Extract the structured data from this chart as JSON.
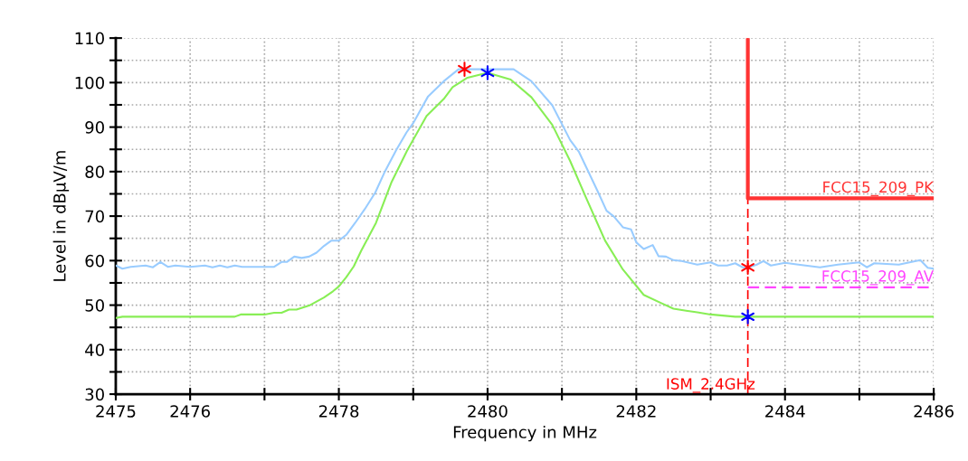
{
  "chart_data": {
    "type": "line",
    "xlabel": "Frequency in MHz",
    "ylabel": "Level in dBµV/m",
    "xlim": [
      2475,
      2486
    ],
    "xticks": [
      2475,
      2476,
      {
        "value": 2477,
        "label": null
      },
      2478,
      {
        "value": 2479,
        "label": null
      },
      2480,
      {
        "value": 2481,
        "label": null
      },
      2482,
      {
        "value": 2483,
        "label": null
      },
      2484,
      {
        "value": 2485,
        "label": null
      },
      2486
    ],
    "ylim": [
      30,
      110
    ],
    "yticks": [
      30,
      {
        "value": 35,
        "label": null
      },
      40,
      {
        "value": 45,
        "label": null
      },
      50,
      {
        "value": 55,
        "label": null
      },
      60,
      {
        "value": 65,
        "label": null
      },
      70,
      {
        "value": 75,
        "label": null
      },
      80,
      {
        "value": 85,
        "label": null
      },
      90,
      {
        "value": 95,
        "label": null
      },
      100,
      {
        "value": 105,
        "label": null
      },
      110
    ],
    "grid": true,
    "series": [
      {
        "color": "#99ccff",
        "x": [
          2475.0,
          2475.09,
          2475.2,
          2475.4,
          2475.5,
          2475.6,
          2475.7,
          2475.8,
          2476.0,
          2476.2,
          2476.3,
          2476.4,
          2476.5,
          2476.6,
          2476.7,
          2477.13,
          2477.23,
          2477.3,
          2477.4,
          2477.5,
          2477.6,
          2477.7,
          2477.8,
          2477.9,
          2478.0,
          2478.1,
          2478.22,
          2478.35,
          2478.49,
          2478.61,
          2478.77,
          2478.91,
          2479.0,
          2479.2,
          2479.41,
          2479.61,
          2480.35,
          2480.59,
          2480.87,
          2481.11,
          2481.23,
          2481.48,
          2481.6,
          2481.7,
          2481.82,
          2481.93,
          2482.0,
          2482.1,
          2482.22,
          2482.3,
          2482.4,
          2482.5,
          2482.61,
          2482.82,
          2483.0,
          2483.1,
          2483.22,
          2483.33,
          2483.43,
          2483.51,
          2483.62,
          2483.71,
          2483.81,
          2484.0,
          2484.18,
          2484.47,
          2484.71,
          2485.0,
          2485.1,
          2485.2,
          2485.53,
          2485.82,
          2485.92,
          2486.0
        ],
        "values": [
          58.9,
          58.2,
          58.6,
          58.9,
          58.5,
          59.7,
          58.6,
          58.9,
          58.6,
          58.9,
          58.5,
          58.9,
          58.5,
          58.9,
          58.6,
          58.6,
          59.7,
          59.7,
          60.9,
          60.6,
          60.9,
          61.8,
          63.3,
          64.5,
          64.5,
          65.8,
          68.5,
          71.6,
          75.3,
          79.7,
          84.8,
          88.8,
          90.9,
          96.9,
          100.3,
          103.0,
          103.0,
          100.3,
          94.9,
          87.1,
          84.4,
          75.6,
          71.2,
          69.9,
          67.5,
          67.0,
          64.1,
          62.6,
          63.5,
          61.0,
          60.9,
          60.1,
          59.9,
          59.1,
          59.6,
          58.9,
          58.9,
          59.4,
          58.5,
          58.5,
          59.1,
          59.9,
          58.9,
          59.5,
          59.1,
          58.5,
          59.1,
          59.6,
          58.5,
          59.4,
          59.1,
          60.1,
          58.4,
          58.2
        ]
      },
      {
        "color": "#88ee55",
        "x": [
          2475.0,
          2475.09,
          2476.6,
          2476.68,
          2477.0,
          2477.13,
          2477.23,
          2477.33,
          2477.43,
          2477.6,
          2477.8,
          2477.92,
          2478.0,
          2478.1,
          2478.2,
          2478.3,
          2478.5,
          2478.71,
          2478.92,
          2479.18,
          2479.41,
          2479.53,
          2479.73,
          2480.0,
          2480.31,
          2480.59,
          2480.87,
          2481.11,
          2481.32,
          2481.58,
          2481.82,
          2482.1,
          2482.33,
          2482.5,
          2482.69,
          2482.82,
          2483.0,
          2483.33,
          2486.0
        ],
        "values": [
          47.1,
          47.4,
          47.4,
          47.9,
          47.9,
          48.3,
          48.3,
          49.0,
          49.0,
          49.9,
          51.7,
          53.1,
          54.2,
          56.3,
          58.7,
          62.2,
          68.5,
          77.7,
          84.8,
          92.5,
          96.3,
          99.0,
          101.1,
          102.2,
          100.7,
          96.7,
          90.5,
          82.4,
          74.3,
          64.5,
          58.0,
          52.3,
          50.5,
          49.2,
          48.7,
          48.4,
          47.9,
          47.4,
          47.4
        ]
      },
      {
        "name": "FCC15_209_PK",
        "color": "#ff3333",
        "line_style": "solid",
        "x": [
          2483.5,
          2483.5,
          2486.0
        ],
        "values": [
          110,
          74,
          74
        ]
      },
      {
        "name": "FCC15_209_AV",
        "color": "#ff44ff",
        "line_style": "dashed",
        "x": [
          2483.5,
          2486.0
        ],
        "values": [
          54,
          54
        ]
      },
      {
        "type": "scatter",
        "color": "#ff0000",
        "marker": "cross",
        "x": [
          2479.69,
          2483.5
        ],
        "values": [
          103.0,
          58.5
        ]
      },
      {
        "type": "scatter",
        "color": "#0000ff",
        "marker": "cross",
        "x": [
          2480.0,
          2483.5
        ],
        "values": [
          102.2,
          47.4
        ]
      }
    ],
    "ref_lines": [
      {
        "axis": "x",
        "value": 2483.5,
        "label": "ISM_2.4GHz",
        "color": "#ff0000",
        "line_style": "dashed"
      }
    ]
  }
}
